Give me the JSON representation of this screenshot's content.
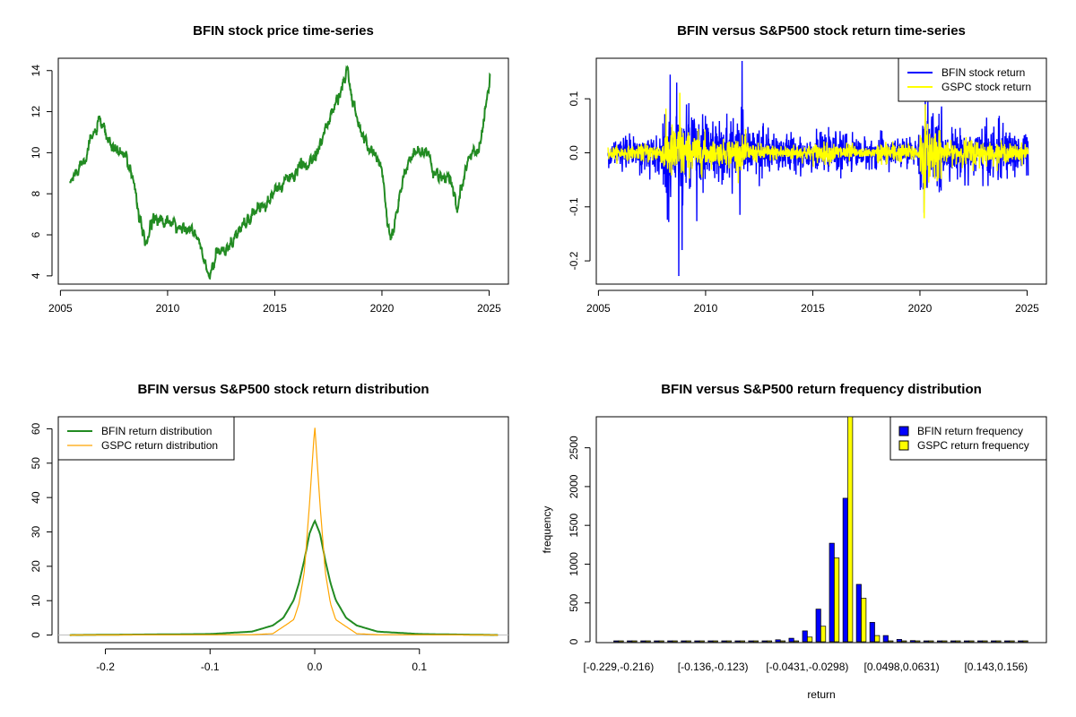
{
  "chart_data": [
    {
      "id": "price",
      "type": "line",
      "title": "BFIN stock price time-series",
      "xlabel": "",
      "ylabel": "",
      "xlim": [
        2004.9,
        2025.9
      ],
      "ylim": [
        3.6,
        14.6
      ],
      "x_ticks": [
        "2005",
        "2010",
        "2015",
        "2020",
        "2025"
      ],
      "x_tick_values": [
        2005,
        2010,
        2015,
        2020,
        2025
      ],
      "y_ticks": [
        "4",
        "6",
        "8",
        "10",
        "12",
        "14"
      ],
      "y_tick_values": [
        4,
        6,
        8,
        10,
        12,
        14
      ],
      "tick_orientation": "y labels rotated vertical",
      "grid": false,
      "legend": null,
      "colors": {
        "series": "#228b22"
      },
      "series": [
        {
          "name": "",
          "x": [
            2005.45,
            2005.7,
            2006.0,
            2006.3,
            2006.6,
            2006.85,
            2007.1,
            2007.4,
            2007.7,
            2008.0,
            2008.3,
            2008.5,
            2008.7,
            2008.85,
            2009.0,
            2009.2,
            2009.4,
            2009.6,
            2009.8,
            2010.0,
            2010.3,
            2010.6,
            2010.9,
            2011.2,
            2011.5,
            2011.8,
            2011.95,
            2012.1,
            2012.3,
            2012.6,
            2012.9,
            2013.2,
            2013.5,
            2013.8,
            2014.1,
            2014.4,
            2014.7,
            2015.0,
            2015.3,
            2015.6,
            2015.9,
            2016.2,
            2016.5,
            2016.8,
            2017.1,
            2017.4,
            2017.7,
            2018.0,
            2018.2,
            2018.4,
            2018.6,
            2018.8,
            2019.0,
            2019.3,
            2019.6,
            2019.9,
            2020.1,
            2020.25,
            2020.4,
            2020.6,
            2020.8,
            2021.0,
            2021.3,
            2021.6,
            2021.9,
            2022.2,
            2022.5,
            2022.8,
            2023.1,
            2023.3,
            2023.5,
            2023.7,
            2023.9,
            2024.1,
            2024.3,
            2024.5,
            2024.7,
            2024.9,
            2025.05
          ],
          "values": [
            8.5,
            9.0,
            9.6,
            10.2,
            11.0,
            11.5,
            10.8,
            10.3,
            10.0,
            9.8,
            9.2,
            8.2,
            6.8,
            6.0,
            5.2,
            6.5,
            7.0,
            6.8,
            6.5,
            6.6,
            6.4,
            6.2,
            6.5,
            6.0,
            5.6,
            4.3,
            3.9,
            4.4,
            5.0,
            5.3,
            5.6,
            6.0,
            6.4,
            6.8,
            7.2,
            7.5,
            7.8,
            8.1,
            8.4,
            8.7,
            9.0,
            9.2,
            9.4,
            9.8,
            10.5,
            11.2,
            12.0,
            12.8,
            13.3,
            14.2,
            12.5,
            11.8,
            11.2,
            10.4,
            10.0,
            9.5,
            8.6,
            6.4,
            5.8,
            6.5,
            7.8,
            8.8,
            9.6,
            10.0,
            10.0,
            9.8,
            9.0,
            8.6,
            8.9,
            8.1,
            7.2,
            8.2,
            9.0,
            9.8,
            10.2,
            10.0,
            11.2,
            12.6,
            13.4
          ]
        }
      ]
    },
    {
      "id": "returns",
      "type": "line",
      "title": "BFIN versus S&P500 stock return time-series",
      "xlabel": "",
      "ylabel": "",
      "xlim": [
        2004.9,
        2025.9
      ],
      "ylim": [
        -0.243,
        0.175
      ],
      "x_ticks": [
        "2005",
        "2010",
        "2015",
        "2020",
        "2025"
      ],
      "x_tick_values": [
        2005,
        2010,
        2015,
        2020,
        2025
      ],
      "y_ticks": [
        "-0.2",
        "-0.1",
        "0.0",
        "0.1"
      ],
      "y_tick_values": [
        -0.2,
        -0.1,
        0.0,
        0.1
      ],
      "grid": false,
      "legend": "top-right",
      "colors": {
        "bfin": "#0000ff",
        "gspc": "#ffff00"
      },
      "series": [
        {
          "name": "BFIN stock return",
          "x_range": [
            2005.45,
            2025.05
          ],
          "volatility_by_year": {
            "2005": 0.012,
            "2006": 0.013,
            "2007": 0.017,
            "2008": 0.045,
            "2009": 0.04,
            "2010": 0.026,
            "2011": 0.032,
            "2012": 0.024,
            "2013": 0.018,
            "2014": 0.016,
            "2015": 0.015,
            "2016": 0.017,
            "2017": 0.013,
            "2018": 0.015,
            "2019": 0.013,
            "2020": 0.04,
            "2021": 0.02,
            "2022": 0.022,
            "2023": 0.025,
            "2024": 0.02,
            "2025": 0.02
          },
          "extremes": [
            {
              "x": 2008.75,
              "y": -0.228
            },
            {
              "x": 2008.65,
              "y": 0.13
            },
            {
              "x": 2008.9,
              "y": -0.18
            },
            {
              "x": 2011.7,
              "y": 0.17
            },
            {
              "x": 2011.6,
              "y": -0.115
            },
            {
              "x": 2020.25,
              "y": 0.11
            },
            {
              "x": 2020.2,
              "y": -0.11
            }
          ]
        },
        {
          "name": "GSPC stock return",
          "x_range": [
            2005.45,
            2025.05
          ],
          "volatility_by_year": {
            "2005": 0.006,
            "2006": 0.006,
            "2007": 0.009,
            "2008": 0.025,
            "2009": 0.018,
            "2010": 0.011,
            "2011": 0.014,
            "2012": 0.008,
            "2013": 0.007,
            "2014": 0.007,
            "2015": 0.009,
            "2016": 0.008,
            "2017": 0.004,
            "2018": 0.01,
            "2019": 0.008,
            "2020": 0.025,
            "2021": 0.009,
            "2022": 0.013,
            "2023": 0.009,
            "2024": 0.008,
            "2025": 0.009
          },
          "extremes": [
            {
              "x": 2020.2,
              "y": -0.12
            },
            {
              "x": 2020.25,
              "y": 0.09
            },
            {
              "x": 2008.8,
              "y": -0.09
            },
            {
              "x": 2008.8,
              "y": 0.11
            }
          ]
        }
      ]
    },
    {
      "id": "density",
      "type": "line",
      "title": "BFIN versus S&P500 stock return distribution",
      "xlabel": "",
      "ylabel": "",
      "xlim": [
        -0.245,
        0.185
      ],
      "ylim": [
        -2.2,
        63.5
      ],
      "x_ticks": [
        "-0.2",
        "-0.1",
        "0.0",
        "0.1"
      ],
      "x_tick_values": [
        -0.2,
        -0.1,
        0.0,
        0.1
      ],
      "y_ticks": [
        "0",
        "10",
        "20",
        "30",
        "40",
        "50",
        "60"
      ],
      "y_tick_values": [
        0,
        10,
        20,
        30,
        40,
        50,
        60
      ],
      "grid": false,
      "legend": "top-left",
      "colors": {
        "bfin": "#228b22",
        "gspc": "#ffa500",
        "baseline": "#bebebe"
      },
      "series": [
        {
          "name": "BFIN return distribution",
          "x_range": [
            -0.234,
            0.175
          ],
          "peak": 33.3,
          "x": [
            -0.234,
            -0.1,
            -0.06,
            -0.04,
            -0.03,
            -0.02,
            -0.015,
            -0.01,
            -0.005,
            0.0,
            0.005,
            0.01,
            0.015,
            0.02,
            0.03,
            0.04,
            0.06,
            0.1,
            0.175
          ],
          "values": [
            0,
            0.3,
            1.0,
            2.8,
            5.0,
            10.2,
            15.2,
            21.8,
            29.5,
            33.3,
            29.5,
            21.8,
            15.2,
            10.2,
            5.0,
            2.8,
            1.0,
            0.3,
            0
          ]
        },
        {
          "name": "GSPC return distribution",
          "x_range": [
            -0.234,
            0.175
          ],
          "peak": 61,
          "x": [
            -0.234,
            -0.06,
            -0.04,
            -0.02,
            -0.015,
            -0.01,
            -0.005,
            0.0,
            0.005,
            0.01,
            0.015,
            0.02,
            0.04,
            0.06,
            0.175
          ],
          "values": [
            0,
            0.1,
            0.4,
            4.5,
            9.2,
            18.5,
            38.0,
            61.0,
            38.0,
            18.5,
            9.2,
            4.5,
            0.4,
            0.1,
            0
          ]
        }
      ]
    },
    {
      "id": "frequency",
      "type": "bar",
      "title": "BFIN versus S&P500 return frequency distribution",
      "xlabel": "return",
      "ylabel": "frequency",
      "ylim": [
        0,
        2900
      ],
      "y_ticks": [
        "0",
        "500",
        "1000",
        "1500",
        "2000",
        "2500"
      ],
      "y_tick_values": [
        0,
        500,
        1000,
        1500,
        2000,
        2500
      ],
      "x_tick_labels": [
        "[-0.229,-0.216)",
        "[-0.136,-0.123)",
        "[-0.0431,-0.0298)",
        "[0.0498,0.0631)",
        "[0.143,0.156)"
      ],
      "x_tick_bins": [
        0,
        7,
        14,
        21,
        28
      ],
      "bin_count": 31,
      "grid": false,
      "legend": "top-right",
      "colors": {
        "bfin": "#0000ff",
        "gspc": "#ffff00"
      },
      "series": [
        {
          "name": "BFIN return frequency",
          "values": [
            1,
            0,
            1,
            0,
            1,
            2,
            2,
            3,
            5,
            6,
            8,
            12,
            25,
            45,
            140,
            420,
            1270,
            1850,
            740,
            250,
            80,
            30,
            15,
            8,
            5,
            3,
            2,
            1,
            1,
            1,
            1
          ]
        },
        {
          "name": "GSPC return frequency",
          "values": [
            0,
            0,
            0,
            0,
            0,
            0,
            0,
            0,
            0,
            0,
            0,
            1,
            3,
            10,
            60,
            200,
            1080,
            2900,
            560,
            80,
            12,
            4,
            1,
            0,
            0,
            0,
            0,
            0,
            0,
            0,
            0
          ]
        }
      ]
    }
  ]
}
